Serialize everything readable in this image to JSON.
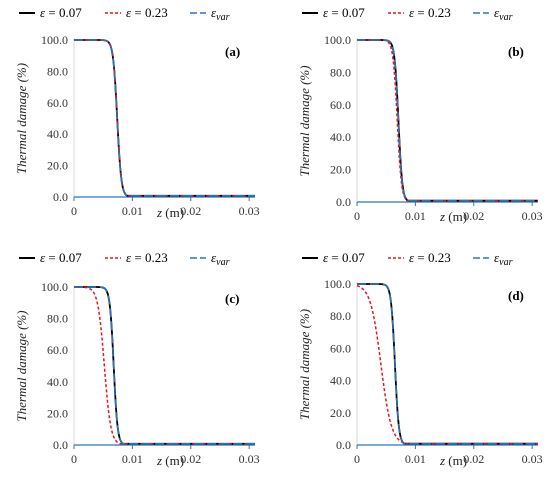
{
  "chart_data": [
    {
      "type": "line",
      "panel_label": "(a)",
      "xlabel_var": "z",
      "xlabel_unit": " (m)",
      "ylabel": "Thermal damage (%)",
      "xlim": [
        0,
        0.031
      ],
      "ylim": [
        0,
        100
      ],
      "xticks": [
        0,
        0.01,
        0.02,
        0.03
      ],
      "xtick_labels": [
        "0",
        "0.01",
        "0.02",
        "0.03"
      ],
      "yticks": [
        0,
        20,
        40,
        60,
        80,
        100
      ],
      "ytick_labels": [
        "0.0",
        "20.0",
        "40.0",
        "60.0",
        "80.0",
        "100.0"
      ],
      "series": [
        {
          "name": "ε = 0.07",
          "style": "solid",
          "color": "#000000",
          "center": 0.0074,
          "width": 0.00035
        },
        {
          "name": "ε = 0.23",
          "style": "dotted",
          "color": "#e8141b",
          "center": 0.0074,
          "width": 0.00035
        },
        {
          "name": "εvar",
          "style": "dashed",
          "color": "#2e75b6",
          "center": 0.0074,
          "width": 0.00035
        }
      ]
    },
    {
      "type": "line",
      "panel_label": "(b)",
      "xlabel_var": "z",
      "xlabel_unit": " (m)",
      "ylabel": "Thermal damage (%)",
      "xlim": [
        0,
        0.031
      ],
      "ylim": [
        0,
        100
      ],
      "xticks": [
        0,
        0.01,
        0.02,
        0.03
      ],
      "xtick_labels": [
        "0",
        "0.01",
        "0.02",
        "0.03"
      ],
      "yticks": [
        0,
        20,
        40,
        60,
        80,
        100
      ],
      "ytick_labels": [
        "0.0",
        "20.0",
        "40.0",
        "60.0",
        "80.0",
        "100.0"
      ],
      "series": [
        {
          "name": "ε = 0.07",
          "style": "solid",
          "color": "#000000",
          "center": 0.0071,
          "width": 0.00033
        },
        {
          "name": "ε = 0.23",
          "style": "dotted",
          "color": "#e8141b",
          "center": 0.0069,
          "width": 0.00036
        },
        {
          "name": "εvar",
          "style": "dashed",
          "color": "#2e75b6",
          "center": 0.0071,
          "width": 0.00033
        }
      ]
    },
    {
      "type": "line",
      "panel_label": "(c)",
      "xlabel_var": "z",
      "xlabel_unit": " (m)",
      "ylabel": "Thermal damage (%)",
      "xlim": [
        0,
        0.031
      ],
      "ylim": [
        0,
        100
      ],
      "xticks": [
        0,
        0.01,
        0.02,
        0.03
      ],
      "xtick_labels": [
        "0",
        "0.01",
        "0.02",
        "0.03"
      ],
      "yticks": [
        0,
        20,
        40,
        60,
        80,
        100
      ],
      "ytick_labels": [
        "0.0",
        "20.0",
        "40.0",
        "60.0",
        "80.0",
        "100.0"
      ],
      "series": [
        {
          "name": "ε = 0.07",
          "style": "solid",
          "color": "#000000",
          "center": 0.0068,
          "width": 0.00033
        },
        {
          "name": "ε = 0.23",
          "style": "dotted",
          "color": "#e8141b",
          "center": 0.0052,
          "width": 0.00055
        },
        {
          "name": "εvar",
          "style": "dashed",
          "color": "#2e75b6",
          "center": 0.0068,
          "width": 0.00033
        }
      ]
    },
    {
      "type": "line",
      "panel_label": "(d)",
      "xlabel_var": "z",
      "xlabel_unit": " (m)",
      "ylabel": "Thermal damage (%)",
      "xlim": [
        0,
        0.031
      ],
      "ylim": [
        0,
        100
      ],
      "xticks": [
        0,
        0.01,
        0.02,
        0.03
      ],
      "xtick_labels": [
        "0",
        "0.01",
        "0.02",
        "0.03"
      ],
      "yticks": [
        0,
        20,
        40,
        60,
        80,
        100
      ],
      "ytick_labels": [
        "0.0",
        "20.0",
        "40.0",
        "60.0",
        "80.0",
        "100.0"
      ],
      "series": [
        {
          "name": "ε = 0.07",
          "style": "solid",
          "color": "#000000",
          "center": 0.0065,
          "width": 0.00033
        },
        {
          "name": "ε = 0.23",
          "style": "dotted",
          "color": "#e8141b",
          "center": 0.0041,
          "width": 0.0009
        },
        {
          "name": "εvar",
          "style": "dashed",
          "color": "#2e75b6",
          "center": 0.0065,
          "width": 0.00033
        }
      ]
    }
  ],
  "legend": {
    "entries": [
      {
        "sym": "ε",
        "rest": " = 0.07",
        "color": "#000000",
        "style": "solid"
      },
      {
        "sym": "ε",
        "rest": " = 0.23",
        "color": "#e8141b",
        "style": "dotted"
      },
      {
        "sym": "ε",
        "sub": "var",
        "color": "#2e75b6",
        "style": "dashed"
      }
    ]
  },
  "colors": {
    "axis": "#2e75b6",
    "tick_text": "#333333"
  }
}
